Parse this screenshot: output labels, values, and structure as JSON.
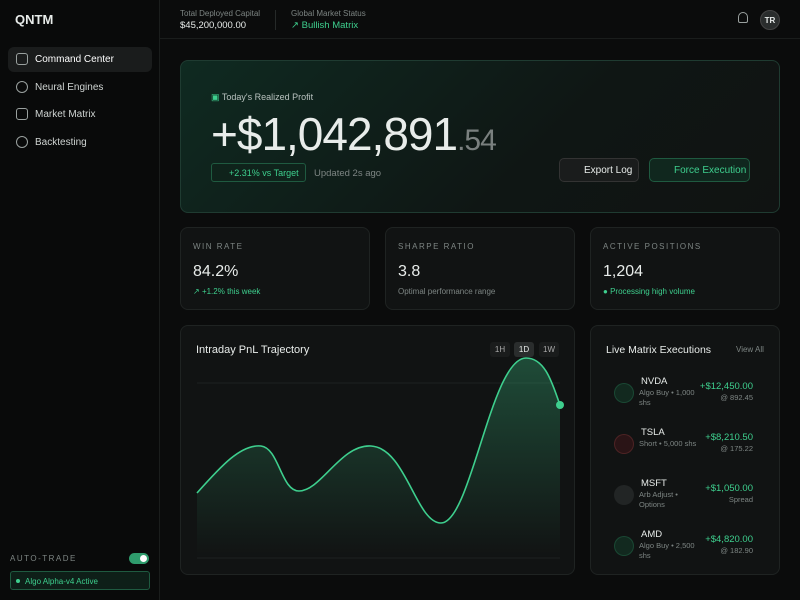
{
  "sidebar": {
    "brand": "QNTM",
    "nav": [
      "Command Center",
      "Neural Engines",
      "Market Matrix",
      "Backtesting"
    ],
    "auto_trade": "AUTO-TRADE",
    "status": "Algo Alpha-v4 Active"
  },
  "header": {
    "capital_label": "Total Deployed Capital",
    "capital_value": "$45,200,000.00",
    "market_label": "Global Market Status",
    "market_value": "Bullish Matrix",
    "avatar": "TR"
  },
  "hero": {
    "label": "Today's Realized Profit",
    "amount": "+$1,042,891",
    "cents": ".54",
    "delta": "+2.31% vs Target",
    "updated": "Updated 2s ago",
    "buttons": [
      "Export Log",
      "Force Execution"
    ]
  },
  "stats": [
    {
      "label": "WIN RATE",
      "value": "84.2%",
      "note": "+1.2% this week"
    },
    {
      "label": "SHARPE RATIO",
      "value": "3.8",
      "note": "Optimal performance range"
    },
    {
      "label": "ACTIVE POSITIONS",
      "value": "1,204",
      "note": "Processing high volume"
    }
  ],
  "chart": {
    "title": "Intraday PnL Trajectory",
    "ranges": [
      "1H",
      "1D",
      "1W"
    ]
  },
  "executions": {
    "title": "Live Matrix Executions",
    "link": "View All",
    "rows": [
      {
        "symbol": "NVDA",
        "detail": "Algo Buy • 1,000 shs",
        "pnl": "+$12,450.00",
        "price": "@ 892.45"
      },
      {
        "symbol": "TSLA",
        "detail": "Short • 5,000 shs",
        "pnl": "+$8,210.50",
        "price": "@ 175.22"
      },
      {
        "symbol": "MSFT",
        "detail": "Arb Adjust • Options",
        "pnl": "+$1,050.00",
        "price": "Spread"
      },
      {
        "symbol": "AMD",
        "detail": "Algo Buy • 2,500 shs",
        "pnl": "+$4,820.00",
        "price": "@ 182.90"
      }
    ]
  }
}
